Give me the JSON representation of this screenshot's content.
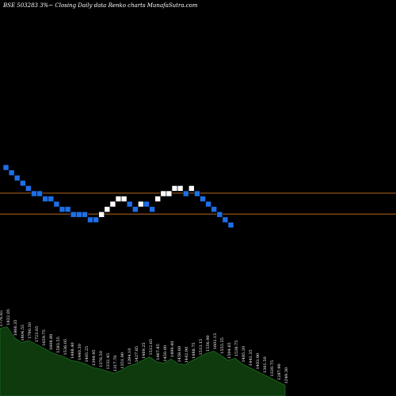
{
  "header": {
    "title": "BSE 503283 3%~  Closing Daily data  Renko  charts MunafaSutra.com"
  },
  "chart_data": {
    "type": "renko",
    "title": "BSE 503283 3%~  Closing Daily data  Renko  charts MunafaSutra.com",
    "colors": {
      "background": "#000000",
      "up_brick": "#ffffff",
      "down_brick": "#1e6fe8",
      "reference_line": "#b5651d",
      "volume_area": "#0e3a0e"
    },
    "brick_levels": [
      0,
      -1,
      -2,
      -3,
      -4,
      -5,
      -5,
      -6,
      -6,
      -7,
      -8,
      -8,
      -9,
      -9,
      -9,
      -10,
      -10,
      -9,
      -8,
      -7,
      -6,
      -6,
      -7,
      -8,
      -7,
      -7,
      -8,
      -6,
      -5,
      -5,
      -4,
      -4,
      -5,
      -4,
      -5,
      -6,
      -7,
      -8,
      -9,
      -10,
      -11
    ],
    "brick_directions": [
      "down",
      "down",
      "down",
      "down",
      "down",
      "down",
      "down",
      "down",
      "down",
      "down",
      "down",
      "down",
      "down",
      "down",
      "down",
      "down",
      "down",
      "up",
      "up",
      "up",
      "up",
      "up",
      "down",
      "down",
      "up",
      "down",
      "down",
      "up",
      "up",
      "up",
      "up",
      "up",
      "down",
      "up",
      "down",
      "down",
      "down",
      "down",
      "down",
      "down",
      "down"
    ],
    "reference_levels": [
      -4.9,
      -8.9
    ],
    "volume_levels": [
      0.95,
      0.97,
      0.82,
      0.75,
      0.78,
      0.73,
      0.68,
      0.62,
      0.58,
      0.55,
      0.5,
      0.48,
      0.45,
      0.4,
      0.38,
      0.35,
      0.32,
      0.36,
      0.42,
      0.45,
      0.5,
      0.55,
      0.48,
      0.46,
      0.52,
      0.45,
      0.44,
      0.5,
      0.55,
      0.6,
      0.63,
      0.57,
      0.5,
      0.53,
      0.45,
      0.4,
      0.35,
      0.3,
      0.25,
      0.2,
      0.15
    ],
    "volume_labels": [
      "1776.65",
      "1832.05",
      "1866.35",
      "1804.55",
      "1790.30",
      "1723.05",
      "1659.75",
      "1608.80",
      "1583.55",
      "1536.05",
      "1488.40",
      "1440.30",
      "1405.25",
      "1394.95",
      "1376.50",
      "1332.45",
      "1317.70",
      "1351.90",
      "1394.10",
      "1427.85",
      "1469.25",
      "1512.65",
      "1467.85",
      "1450.00",
      "1499.40",
      "1458.60",
      "1442.90",
      "1488.75",
      "1513.15",
      "1556.90",
      "1602.15",
      "1555.55",
      "1504.65",
      "1538.75",
      "1485.20",
      "1441.35",
      "1403.90",
      "1361.50",
      "1320.75",
      "1287.90",
      "1249.30"
    ]
  }
}
